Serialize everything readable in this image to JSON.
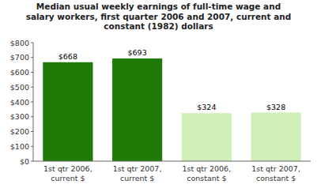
{
  "chart_data": {
    "type": "bar",
    "title": "Median usual weekly earnings of full-time wage and\nsalary workers, first quarter 2006 and 2007, current and\nconstant (1982) dollars",
    "categories": [
      "1st qtr 2006,\ncurrent $",
      "1st qtr 2007,\ncurrent $",
      "1st qtr 2006,\nconstant $",
      "1st qtr 2007,\nconstant $"
    ],
    "values": [
      668,
      693,
      324,
      328
    ],
    "value_labels": [
      "$668",
      "$693",
      "$324",
      "$328"
    ],
    "data_labels": true,
    "colors": [
      "#1f7a08",
      "#1f7a08",
      "#d0f0b8",
      "#d0f0b8"
    ],
    "ylim": [
      0,
      800
    ],
    "yticks": [
      {
        "value": 0,
        "label": "$0"
      },
      {
        "value": 100,
        "label": "$100"
      },
      {
        "value": 200,
        "label": "$200"
      },
      {
        "value": 300,
        "label": "$300"
      },
      {
        "value": 400,
        "label": "$400"
      },
      {
        "value": 500,
        "label": "$500"
      },
      {
        "value": 600,
        "label": "$600"
      },
      {
        "value": 700,
        "label": "$700"
      },
      {
        "value": 800,
        "label": "$800"
      }
    ],
    "grid": false
  }
}
